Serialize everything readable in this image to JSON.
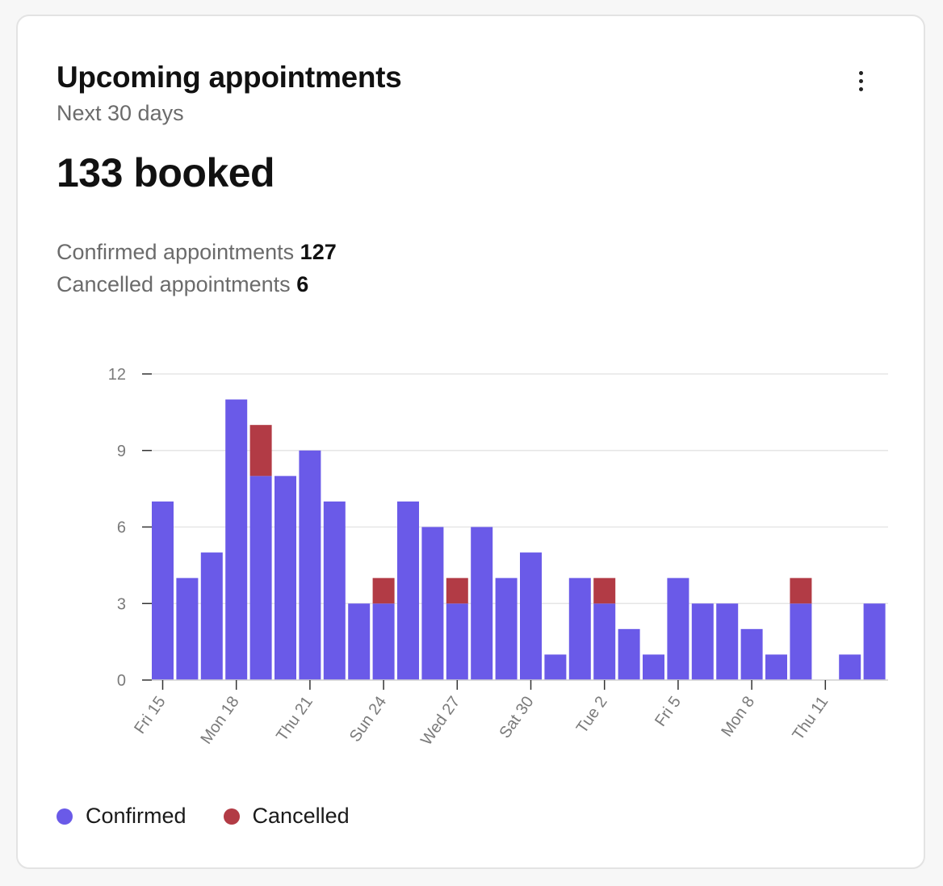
{
  "card": {
    "title": "Upcoming appointments",
    "subtitle": "Next 30 days",
    "headline": "133 booked",
    "stats": [
      {
        "label": "Confirmed appointments",
        "value": "127"
      },
      {
        "label": "Cancelled appointments",
        "value": "6"
      }
    ],
    "menu_icon": "more-vertical-icon"
  },
  "colors": {
    "confirmed": "#6a5ae8",
    "cancelled": "#b23b45",
    "grid": "#e6e6e6",
    "tick_text": "#7a7a7a"
  },
  "legend": [
    {
      "label": "Confirmed",
      "color": "#6a5ae8"
    },
    {
      "label": "Cancelled",
      "color": "#b23b45"
    }
  ],
  "chart_data": {
    "type": "bar",
    "stacked": true,
    "ylim": [
      0,
      12
    ],
    "yticks": [
      0,
      3,
      6,
      9,
      12
    ],
    "grid": true,
    "legend_position": "bottom-left",
    "x_tick_labels": [
      {
        "index": 0,
        "label": "Fri 15"
      },
      {
        "index": 3,
        "label": "Mon 18"
      },
      {
        "index": 6,
        "label": "Thu 21"
      },
      {
        "index": 9,
        "label": "Sun 24"
      },
      {
        "index": 12,
        "label": "Wed 27"
      },
      {
        "index": 15,
        "label": "Sat 30"
      },
      {
        "index": 18,
        "label": "Tue 2"
      },
      {
        "index": 21,
        "label": "Fri 5"
      },
      {
        "index": 24,
        "label": "Mon 8"
      },
      {
        "index": 27,
        "label": "Thu 11"
      }
    ],
    "series": [
      {
        "name": "Confirmed",
        "values": [
          7,
          4,
          5,
          11,
          8,
          8,
          9,
          7,
          3,
          3,
          7,
          6,
          3,
          6,
          4,
          5,
          1,
          4,
          3,
          2,
          1,
          4,
          3,
          3,
          2,
          1,
          3,
          0,
          1,
          3
        ]
      },
      {
        "name": "Cancelled",
        "values": [
          0,
          0,
          0,
          0,
          2,
          0,
          0,
          0,
          0,
          1,
          0,
          0,
          1,
          0,
          0,
          0,
          0,
          0,
          1,
          0,
          0,
          0,
          0,
          0,
          0,
          0,
          1,
          0,
          0,
          0
        ]
      }
    ]
  }
}
